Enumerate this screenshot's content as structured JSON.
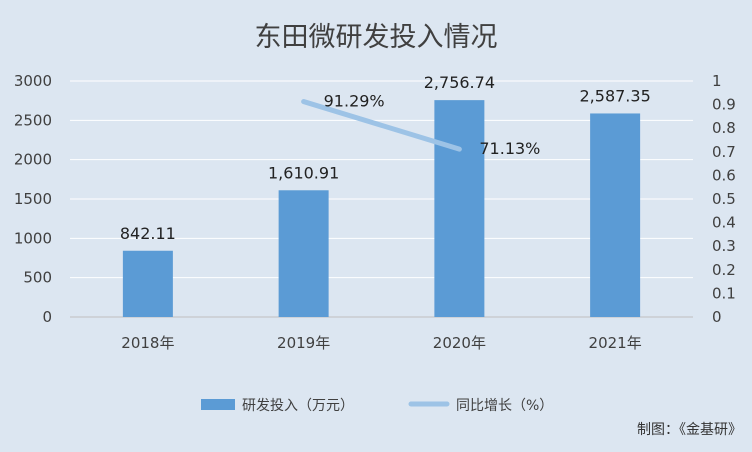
{
  "chart_data": {
    "type": "bar",
    "title": "东田微研发投入情况",
    "categories": [
      "2018年",
      "2019年",
      "2020年",
      "2021年"
    ],
    "series": [
      {
        "name": "研发投入（万元）",
        "type": "bar",
        "axis": "left",
        "values": [
          842.11,
          1610.91,
          2756.74,
          2587.35
        ],
        "labels": [
          "842.11",
          "1,610.91",
          "2,756.74",
          "2,587.35"
        ],
        "color": "#5b9bd5"
      },
      {
        "name": "同比增长（%）",
        "type": "line",
        "axis": "right",
        "values": [
          null,
          0.9129,
          0.7113,
          null
        ],
        "labels": [
          "",
          "91.29%",
          "71.13%",
          ""
        ],
        "color": "#9dc3e6"
      }
    ],
    "y_left": {
      "min": 0,
      "max": 3000,
      "ticks": [
        0,
        500,
        1000,
        1500,
        2000,
        2500,
        3000
      ],
      "tick_labels": [
        "0",
        "500",
        "1000",
        "1500",
        "2000",
        "2500",
        "3000"
      ]
    },
    "y_right": {
      "min": 0,
      "max": 1,
      "ticks": [
        0,
        0.1,
        0.2,
        0.3,
        0.4,
        0.5,
        0.6,
        0.7,
        0.8,
        0.9,
        1
      ],
      "tick_labels": [
        "0",
        "0.1",
        "0.2",
        "0.3",
        "0.4",
        "0.5",
        "0.6",
        "0.7",
        "0.8",
        "0.9",
        "1"
      ]
    },
    "grid": true,
    "legend_position": "bottom",
    "background": "#dce6f1"
  },
  "credit": "制图：《金基研》"
}
